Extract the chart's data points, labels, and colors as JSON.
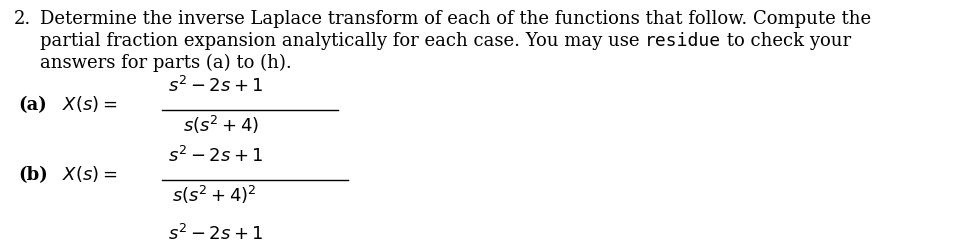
{
  "background_color": "#ffffff",
  "number_prefix": "2.",
  "line1": "Determine the inverse Laplace transform of each of the functions that follow. Compute the",
  "line2_before": "partial fraction expansion analytically for each case. You may use ",
  "line2_code": "residue",
  "line2_after": " to check your",
  "line3": "answers for parts (a) to (h).",
  "label_a": "(a)",
  "label_b": "(b)",
  "text_color": "#000000",
  "fig_width": 9.7,
  "fig_height": 2.52,
  "dpi": 100,
  "body_fontsize": 13.0
}
